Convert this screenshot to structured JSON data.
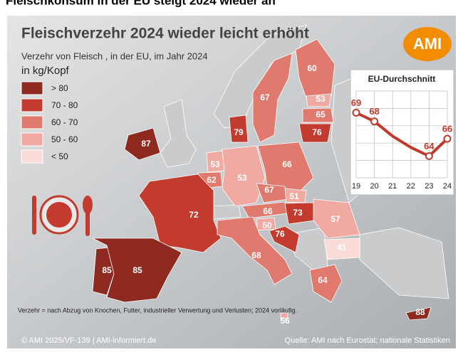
{
  "headline": "Fleischkonsum in der EU steigt 2024 wieder an",
  "title": "Fleischverzehr 2024 wieder leicht erhöht",
  "subtitle": "Verzehr von Fleisch , in der EU, im Jahr 2024",
  "unit": "in kg/Kopf",
  "logo": "AMI",
  "legend": [
    {
      "label": "> 80",
      "color": "#8e2a20"
    },
    {
      "label": "70 - 80",
      "color": "#c23b2e"
    },
    {
      "label": "60 - 70",
      "color": "#e07a6e"
    },
    {
      "label": "50 - 60",
      "color": "#f0aaa1"
    },
    {
      "label": "< 50",
      "color": "#f9dcd8"
    }
  ],
  "regions": [
    {
      "value": 87,
      "color": "#8e2a20"
    },
    {
      "value": 79,
      "color": "#c23b2e"
    },
    {
      "value": 67,
      "color": "#e07a6e"
    },
    {
      "value": 60,
      "color": "#e07a6e"
    },
    {
      "value": 53,
      "color": "#f0aaa1"
    },
    {
      "value": 65,
      "color": "#e07a6e"
    },
    {
      "value": 76,
      "color": "#c23b2e"
    },
    {
      "value": 66,
      "color": "#e07a6e"
    },
    {
      "value": 53,
      "color": "#f0aaa1"
    },
    {
      "value": 62,
      "color": "#e07a6e"
    },
    {
      "value": 53,
      "color": "#f0aaa1"
    },
    {
      "value": 67,
      "color": "#e07a6e"
    },
    {
      "value": 51,
      "color": "#f0aaa1"
    },
    {
      "value": 72,
      "color": "#c23b2e"
    },
    {
      "value": 66,
      "color": "#e07a6e"
    },
    {
      "value": 73,
      "color": "#c23b2e"
    },
    {
      "value": 57,
      "color": "#f0aaa1"
    },
    {
      "value": 50,
      "color": "#f0aaa1"
    },
    {
      "value": 76,
      "color": "#c23b2e"
    },
    {
      "value": 41,
      "color": "#f9dcd8"
    },
    {
      "value": 68,
      "color": "#e07a6e"
    },
    {
      "value": 85,
      "color": "#8e2a20"
    },
    {
      "value": 85,
      "color": "#8e2a20"
    },
    {
      "value": 64,
      "color": "#e07a6e"
    },
    {
      "value": 56,
      "color": "#f0aaa1"
    },
    {
      "value": 88,
      "color": "#8e2a20"
    }
  ],
  "chart_data": {
    "type": "line",
    "title": "EU-Durchschnitt",
    "categories": [
      "19",
      "20",
      "21",
      "22",
      "23",
      "24"
    ],
    "values": [
      69,
      68,
      66.3,
      65,
      64,
      66
    ],
    "labeled": [
      0,
      1,
      4,
      5
    ],
    "color": "#c0392b",
    "ylim": [
      61.5,
      71.5
    ]
  },
  "footnote": "Verzehr = nach Abzug von Knochen, Futter, industrieller Verwertung und Verlusten;  2024 vorläufig.",
  "footer_left": "© AMI 2025/VF-139 | AMI-informiert.de",
  "footer_right": "Quelle: AMI nach Eurostat; nationale Statistiken"
}
